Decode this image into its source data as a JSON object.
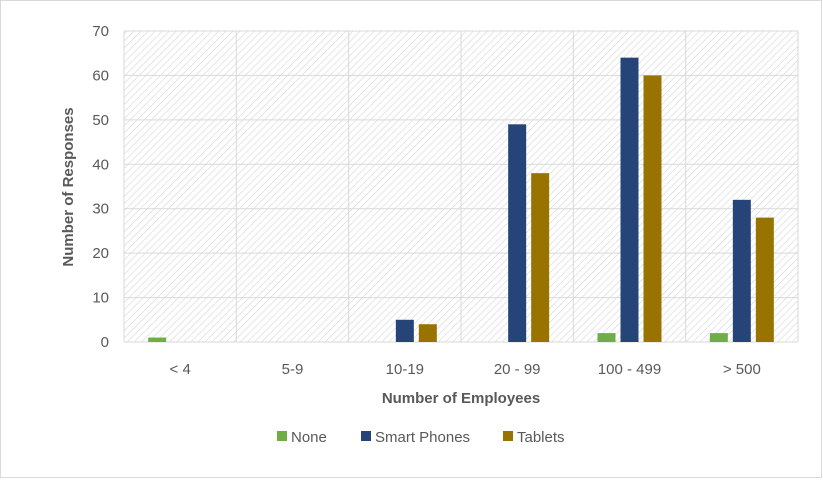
{
  "chart_data": {
    "type": "bar",
    "title": "",
    "xlabel": "Number of Employees",
    "ylabel": "Number of Responses",
    "categories": [
      "< 4",
      "5-9",
      "10-19",
      "20 - 99",
      "100 - 499",
      "> 500"
    ],
    "series": [
      {
        "name": "None",
        "color": "#70ad47",
        "values": [
          1,
          0,
          0,
          0,
          2,
          2
        ]
      },
      {
        "name": "Smart Phones",
        "color": "#264478",
        "values": [
          0,
          0,
          5,
          49,
          64,
          32
        ]
      },
      {
        "name": "Tablets",
        "color": "#997300",
        "values": [
          0,
          0,
          4,
          38,
          60,
          28
        ]
      }
    ],
    "ylim": [
      0,
      70
    ],
    "yticks": [
      0,
      10,
      20,
      30,
      40,
      50,
      60,
      70
    ],
    "grid": true,
    "plot_background": "diagonal hatch",
    "legend": "bottom"
  }
}
